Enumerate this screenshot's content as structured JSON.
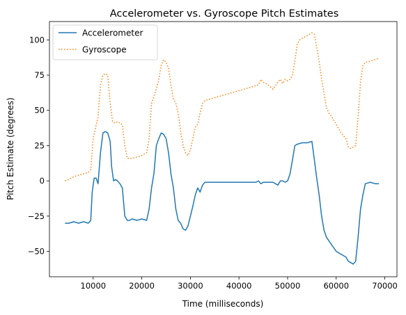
{
  "chart_data": {
    "type": "line",
    "title": "Accelerometer vs. Gyroscope Pitch Estimates",
    "xlabel": "Time (milliseconds)",
    "ylabel": "Pitch Estimate (degrees)",
    "xlim": [
      1000,
      72500
    ],
    "ylim": [
      -68,
      113
    ],
    "grid": false,
    "legend_position": "top-left",
    "x_ticks": [
      {
        "value": 10000,
        "label": "10000"
      },
      {
        "value": 20000,
        "label": "20000"
      },
      {
        "value": 30000,
        "label": "30000"
      },
      {
        "value": 40000,
        "label": "40000"
      },
      {
        "value": 50000,
        "label": "50000"
      },
      {
        "value": 60000,
        "label": "60000"
      },
      {
        "value": 70000,
        "label": "70000"
      }
    ],
    "y_ticks": [
      {
        "value": -50,
        "label": "−50"
      },
      {
        "value": -25,
        "label": "−25"
      },
      {
        "value": 0,
        "label": "0"
      },
      {
        "value": 25,
        "label": "25"
      },
      {
        "value": 50,
        "label": "50"
      },
      {
        "value": 75,
        "label": "75"
      },
      {
        "value": 100,
        "label": "100"
      }
    ],
    "series": [
      {
        "name": "Accelerometer",
        "color": "#1f77b4",
        "style": "solid",
        "x": [
          4200,
          5000,
          6000,
          7000,
          8000,
          9000,
          9500,
          9800,
          10200,
          10600,
          11000,
          11500,
          12000,
          12500,
          13000,
          13500,
          13800,
          14200,
          14600,
          15000,
          15500,
          16000,
          16500,
          17000,
          17500,
          18000,
          19000,
          20000,
          21000,
          21500,
          22000,
          22500,
          23000,
          23500,
          24000,
          24500,
          25000,
          25500,
          26000,
          26500,
          27000,
          27500,
          28000,
          28500,
          29000,
          29500,
          30000,
          30500,
          31000,
          31500,
          32000,
          32500,
          33000,
          34000,
          36000,
          38000,
          40000,
          42000,
          43000,
          43500,
          44000,
          44500,
          45000,
          46000,
          47000,
          48000,
          48500,
          49000,
          49500,
          50000,
          50500,
          51000,
          51500,
          52000,
          53000,
          54000,
          55000,
          55500,
          56000,
          56500,
          57000,
          57500,
          58000,
          59000,
          60000,
          61000,
          62000,
          62500,
          63000,
          63500,
          64000,
          64500,
          65000,
          65500,
          66000,
          67000,
          68000,
          68800
        ],
        "y": [
          -30,
          -30,
          -29,
          -30,
          -29,
          -30,
          -28,
          -8,
          2,
          2,
          -2,
          20,
          34,
          35,
          34,
          28,
          10,
          0,
          1,
          0,
          -2,
          -5,
          -25,
          -28,
          -28,
          -27,
          -28,
          -27,
          -28,
          -20,
          -5,
          5,
          25,
          30,
          34,
          33,
          30,
          20,
          5,
          -5,
          -20,
          -28,
          -30,
          -34,
          -35,
          -32,
          -25,
          -18,
          -10,
          -5,
          -8,
          -3,
          -1,
          -1,
          -1,
          -1,
          -1,
          -1,
          -1,
          -1,
          0,
          -2,
          -1,
          -1,
          -1,
          -3,
          0,
          0,
          -1,
          0,
          5,
          15,
          25,
          26,
          27,
          27,
          28,
          15,
          2,
          -10,
          -25,
          -35,
          -40,
          -45,
          -50,
          -52,
          -54,
          -57,
          -58,
          -59,
          -57,
          -40,
          -20,
          -10,
          -2,
          -1,
          -2,
          -2
        ]
      },
      {
        "name": "Gyroscope",
        "color": "#ff7f0e",
        "style": "dotted",
        "x": [
          4200,
          5000,
          6000,
          7000,
          8000,
          9000,
          9500,
          10000,
          10500,
          11000,
          11500,
          12000,
          12500,
          13000,
          13500,
          14000,
          14500,
          15000,
          16000,
          16500,
          17000,
          18000,
          19000,
          20000,
          21000,
          21500,
          22000,
          22500,
          23000,
          23500,
          24000,
          24500,
          25000,
          25500,
          26000,
          26500,
          27000,
          27500,
          28000,
          28500,
          29000,
          29500,
          30000,
          30500,
          31000,
          31500,
          32000,
          32500,
          33000,
          34000,
          36000,
          38000,
          40000,
          42000,
          43000,
          44000,
          44500,
          45000,
          46000,
          47000,
          48000,
          48500,
          49000,
          49500,
          50000,
          50500,
          51000,
          51500,
          52000,
          52500,
          53000,
          54000,
          55000,
          55500,
          56000,
          56500,
          57000,
          57500,
          58000,
          58500,
          59000,
          60000,
          61000,
          62000,
          62500,
          63000,
          64000,
          64500,
          65000,
          65500,
          66000,
          67000,
          68000,
          68800
        ],
        "y": [
          0,
          1,
          3,
          4,
          5,
          6,
          8,
          30,
          38,
          45,
          68,
          75,
          76,
          75,
          55,
          42,
          41,
          42,
          40,
          25,
          16,
          16,
          17,
          18,
          20,
          30,
          55,
          60,
          65,
          72,
          82,
          86,
          84,
          80,
          68,
          58,
          55,
          48,
          35,
          25,
          20,
          18,
          22,
          30,
          38,
          40,
          48,
          55,
          57,
          58,
          60,
          62,
          64,
          66,
          67,
          68,
          72,
          70,
          68,
          65,
          70,
          72,
          69,
          72,
          71,
          72,
          75,
          85,
          97,
          100,
          101,
          103,
          105,
          104,
          95,
          85,
          72,
          62,
          52,
          48,
          46,
          40,
          34,
          30,
          24,
          23,
          25,
          45,
          70,
          82,
          84,
          85,
          86,
          87
        ]
      }
    ]
  }
}
